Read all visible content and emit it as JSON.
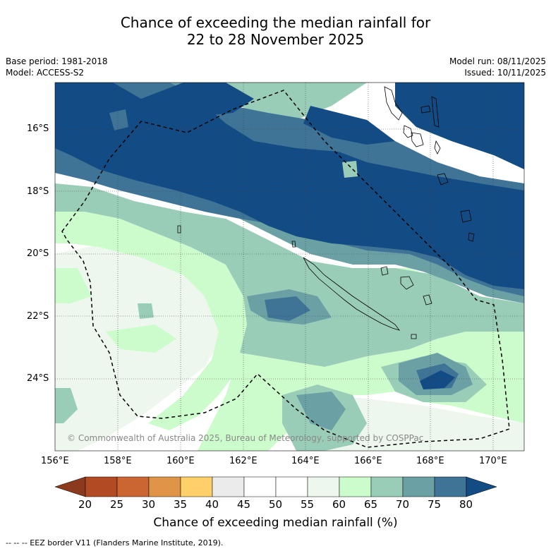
{
  "title": {
    "line1": "Chance of exceeding the median rainfall for",
    "line2": "22 to 28 November 2025"
  },
  "meta": {
    "base_period": "Base period: 1981-2018",
    "model": "Model: ACCESS-S2",
    "model_run": "Model run: 08/11/2025",
    "issued": "Issued: 10/11/2025"
  },
  "map": {
    "lat_labels": [
      "16°S",
      "18°S",
      "20°S",
      "22°S",
      "24°S"
    ],
    "lon_labels": [
      "156°E",
      "158°E",
      "160°E",
      "162°E",
      "164°E",
      "166°E",
      "168°E",
      "170°E"
    ],
    "copyright": "© Commonwealth of Australia 2025, Bureau of Meteorology, supported by COSPPac"
  },
  "colorbar": {
    "levels": [
      "20",
      "25",
      "30",
      "35",
      "40",
      "45",
      "50",
      "55",
      "60",
      "65",
      "70",
      "75",
      "80"
    ],
    "colors": [
      "#8c3a1e",
      "#b24a24",
      "#cb6532",
      "#e09448",
      "#fed069",
      "#ebebeb",
      "#ffffff",
      "#ffffff",
      "#eef7ee",
      "#ccfccc",
      "#9acdb8",
      "#6ba0a4",
      "#3f7496",
      "#134b84"
    ],
    "title": "Chance of exceeding median rainfall (%)"
  },
  "footer": "--  --  -- EEZ border V11 (Flanders Marine Institute, 2019)."
}
